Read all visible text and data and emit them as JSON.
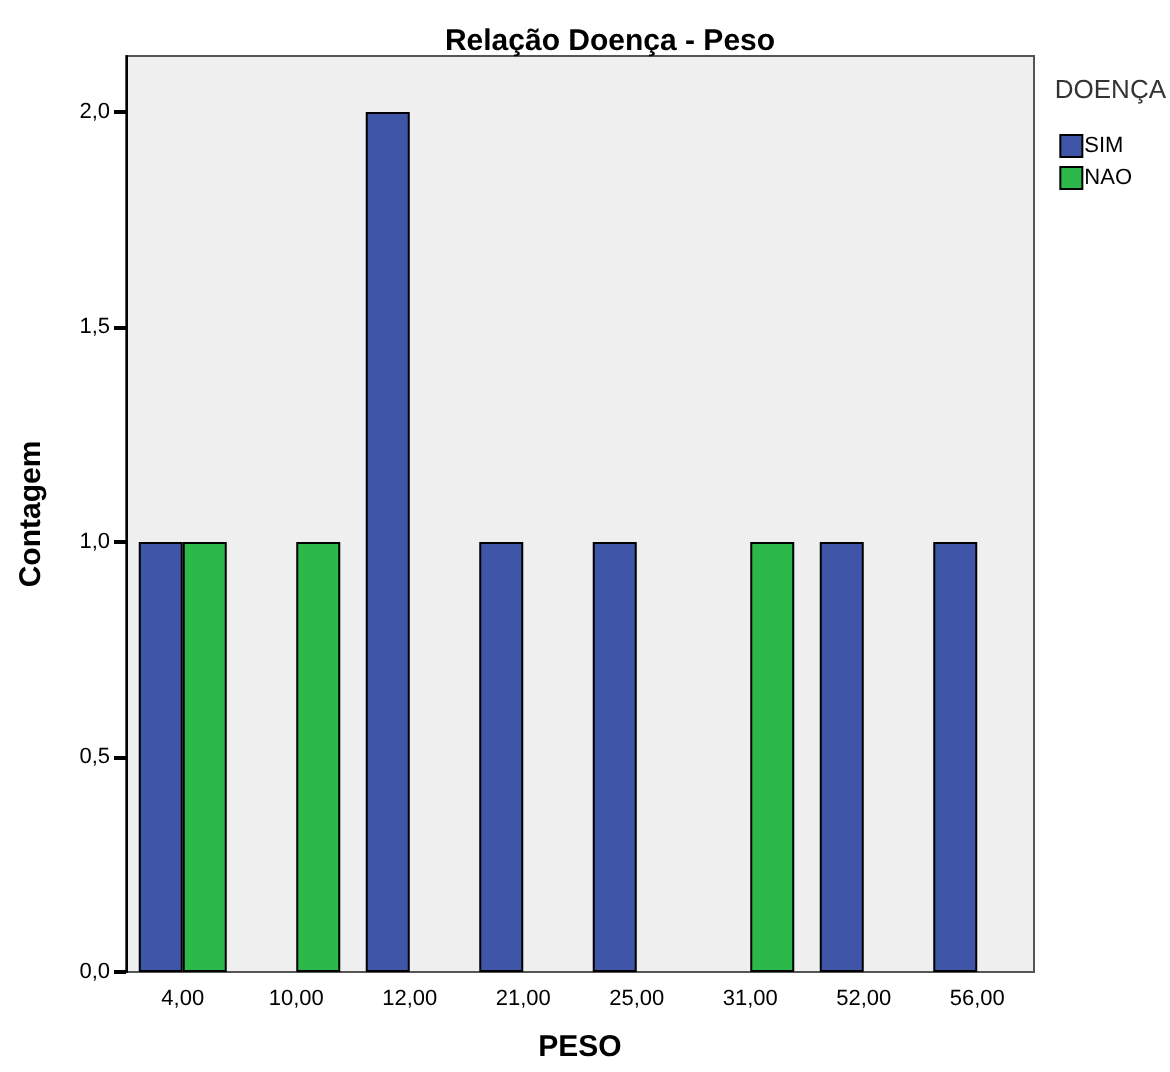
{
  "chart_data": {
    "type": "bar",
    "title": "Relação Doença - Peso",
    "xlabel": "PESO",
    "ylabel": "Contagem",
    "legend_title": "DOENÇA",
    "categories": [
      "4,00",
      "10,00",
      "12,00",
      "21,00",
      "25,00",
      "31,00",
      "52,00",
      "56,00"
    ],
    "series": [
      {
        "name": "SIM",
        "color": "#3f56a8",
        "values": [
          1,
          null,
          2,
          1,
          1,
          null,
          1,
          1
        ]
      },
      {
        "name": "NAO",
        "color": "#2db84a",
        "values": [
          1,
          1,
          null,
          null,
          null,
          1,
          null,
          null
        ]
      }
    ],
    "ylim": [
      0,
      2.13
    ],
    "yticks": [
      {
        "value": 0,
        "label": "0,0"
      },
      {
        "value": 0.5,
        "label": "0,5"
      },
      {
        "value": 1,
        "label": "1,0"
      },
      {
        "value": 1.5,
        "label": "1,5"
      },
      {
        "value": 2,
        "label": "2,0"
      }
    ],
    "grid": false,
    "legend": "top right"
  }
}
